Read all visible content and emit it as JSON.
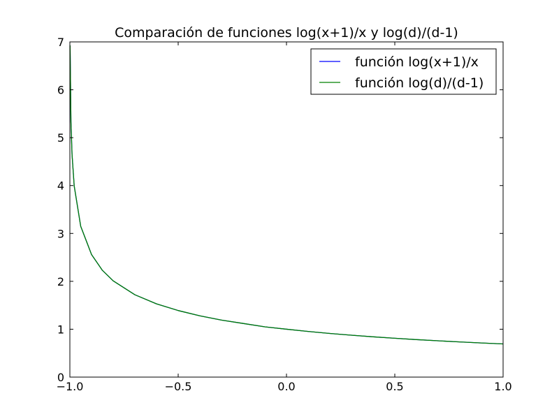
{
  "chart_data": {
    "type": "line",
    "title": "Comparación de funciones log(x+1)/x y log(d)/(d-1)",
    "xlabel": "",
    "ylabel": "",
    "xlim": [
      -1.0,
      1.0
    ],
    "ylim": [
      0,
      7
    ],
    "x_ticks": [
      -1.0,
      -0.5,
      0.0,
      0.5,
      1.0
    ],
    "x_tick_labels": [
      "−1.0",
      "−0.5",
      "0.0",
      "0.5",
      "1.0"
    ],
    "y_ticks": [
      0,
      1,
      2,
      3,
      4,
      5,
      6,
      7
    ],
    "y_tick_labels": [
      "0",
      "1",
      "2",
      "3",
      "4",
      "5",
      "6",
      "7"
    ],
    "grid": false,
    "legend_position": "top-right",
    "series": [
      {
        "name": "función log(x+1)/x",
        "color": "#0000ff",
        "x": [
          -0.999,
          -0.995,
          -0.99,
          -0.98,
          -0.95,
          -0.9,
          -0.85,
          -0.8,
          -0.7,
          -0.6,
          -0.5,
          -0.4,
          -0.3,
          -0.2,
          -0.1,
          0.001,
          0.1,
          0.2,
          0.3,
          0.4,
          0.5,
          0.6,
          0.7,
          0.8,
          0.9,
          1.0
        ],
        "y": [
          6.92,
          5.33,
          4.65,
          3.99,
          3.15,
          2.56,
          2.23,
          2.01,
          1.72,
          1.53,
          1.39,
          1.28,
          1.19,
          1.12,
          1.05,
          1.0,
          0.953,
          0.912,
          0.875,
          0.841,
          0.811,
          0.783,
          0.758,
          0.735,
          0.713,
          0.693
        ]
      },
      {
        "name": "función log(d)/(d-1)",
        "color": "#008000",
        "x": [
          -0.999,
          -0.995,
          -0.99,
          -0.98,
          -0.95,
          -0.9,
          -0.85,
          -0.8,
          -0.7,
          -0.6,
          -0.5,
          -0.4,
          -0.3,
          -0.2,
          -0.1,
          0.001,
          0.1,
          0.2,
          0.3,
          0.4,
          0.5,
          0.6,
          0.7,
          0.8,
          0.9,
          1.0
        ],
        "y": [
          6.92,
          5.33,
          4.65,
          3.99,
          3.15,
          2.56,
          2.23,
          2.01,
          1.72,
          1.53,
          1.39,
          1.28,
          1.19,
          1.12,
          1.05,
          1.0,
          0.953,
          0.912,
          0.875,
          0.841,
          0.811,
          0.783,
          0.758,
          0.735,
          0.713,
          0.693
        ]
      }
    ]
  }
}
